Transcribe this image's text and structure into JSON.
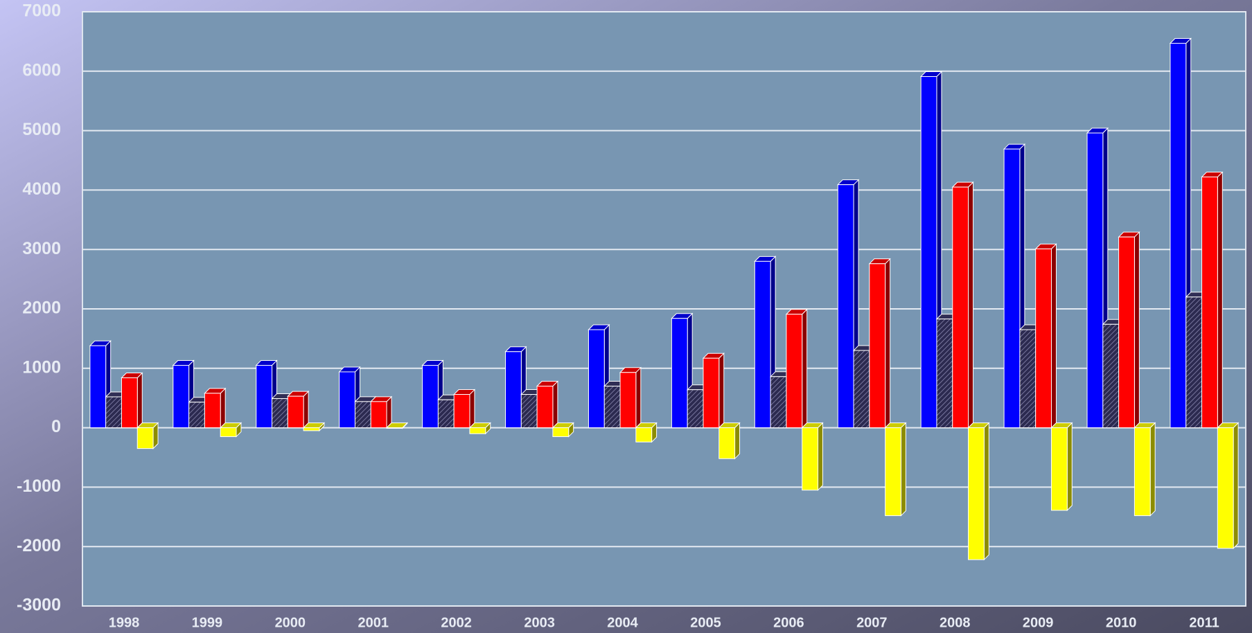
{
  "chart_data": {
    "type": "bar",
    "categories": [
      "1998",
      "1999",
      "2000",
      "2001",
      "2002",
      "2003",
      "2004",
      "2005",
      "2006",
      "2007",
      "2008",
      "2009",
      "2010",
      "2011"
    ],
    "series": [
      {
        "color": "#0000ff",
        "values": [
          1380,
          1050,
          1050,
          940,
          1050,
          1280,
          1650,
          1840,
          2800,
          4090,
          5910,
          4690,
          4960,
          6470
        ]
      },
      {
        "color": "#3c3a6a",
        "hatch": true,
        "values": [
          520,
          430,
          490,
          440,
          470,
          560,
          700,
          640,
          860,
          1300,
          1830,
          1650,
          1740,
          2200
        ]
      },
      {
        "color": "#ff0000",
        "values": [
          840,
          580,
          530,
          440,
          560,
          700,
          930,
          1170,
          1910,
          2760,
          4050,
          3010,
          3210,
          4220
        ]
      },
      {
        "color": "#ffff00",
        "values": [
          -350,
          -150,
          -50,
          -10,
          -100,
          -150,
          -240,
          -520,
          -1050,
          -1480,
          -2220,
          -1390,
          -1480,
          -2030
        ]
      }
    ],
    "ylim": [
      -3000,
      7000
    ],
    "yticks": [
      -3000,
      -2000,
      -1000,
      0,
      1000,
      2000,
      3000,
      4000,
      5000,
      6000,
      7000
    ],
    "grid": true
  }
}
